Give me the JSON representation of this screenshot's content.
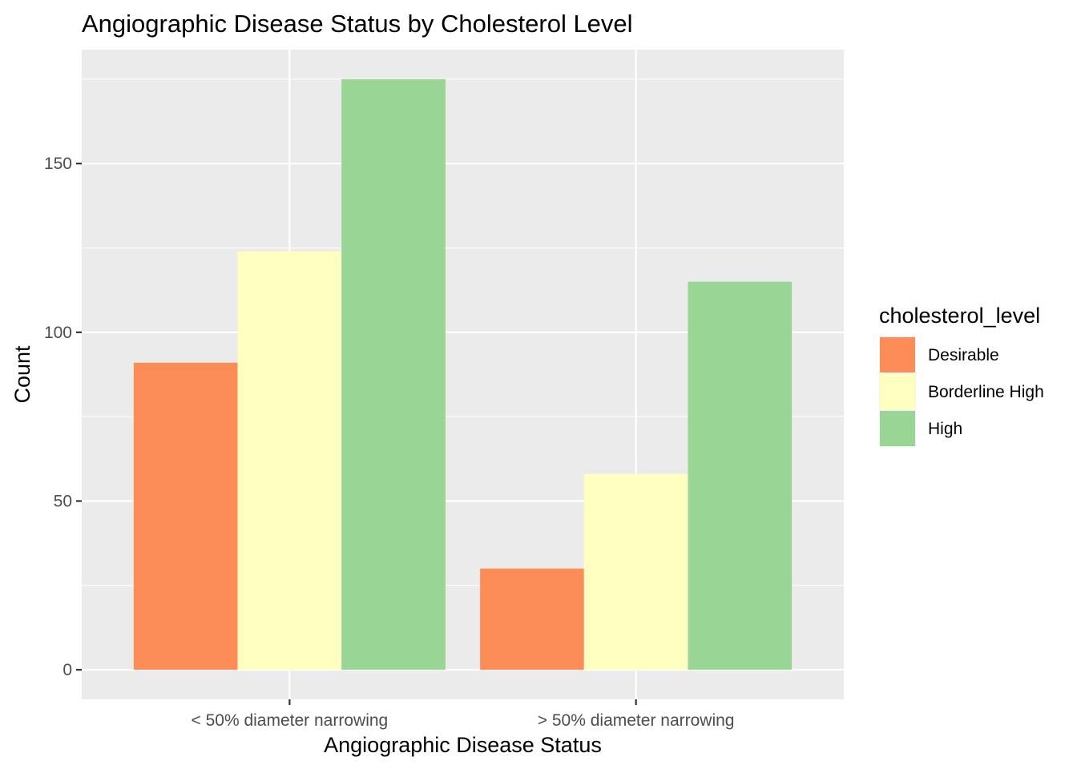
{
  "chart_data": {
    "type": "bar",
    "title": "Angiographic Disease Status by Cholesterol Level",
    "xlabel": "Angiographic Disease Status",
    "ylabel": "Count",
    "categories": [
      "< 50% diameter narrowing",
      "> 50% diameter narrowing"
    ],
    "series": [
      {
        "name": "Desirable",
        "color": "#fc8d59",
        "values": [
          91,
          30
        ]
      },
      {
        "name": "Borderline High",
        "color": "#ffffbf",
        "values": [
          124,
          58
        ]
      },
      {
        "name": "High",
        "color": "#99d594",
        "values": [
          175,
          115
        ]
      }
    ],
    "ylim": [
      -8.75,
      183.75
    ],
    "yticks": [
      0,
      50,
      100,
      150
    ],
    "legend_title": "cholesterol_level",
    "legend_position": "right",
    "grid": true,
    "panel_color": "#ebebeb",
    "grid_color": "#ffffff"
  }
}
